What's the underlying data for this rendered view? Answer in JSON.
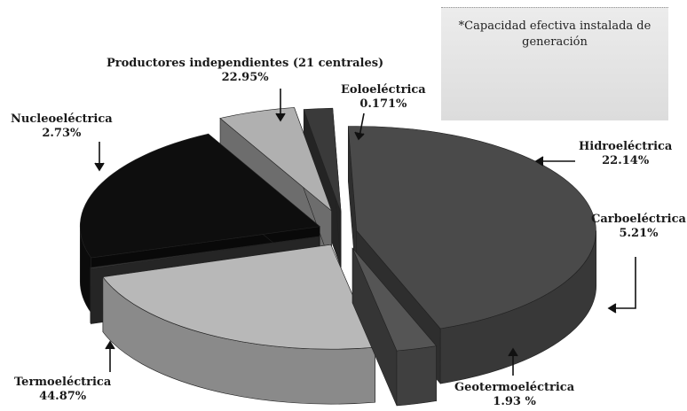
{
  "note": "*Capacidad efectiva instalada de generación",
  "chart_data": {
    "type": "pie",
    "title": "",
    "slices": [
      {
        "label": "Termoeléctrica",
        "value_label": "44.87%",
        "value": 44.87,
        "color": "#4a4a4a"
      },
      {
        "label": "Nucleoeléctrica",
        "value_label": "2.73%",
        "value": 2.73,
        "color": "#555555"
      },
      {
        "label": "Productores independientes (21 centrales)",
        "value_label": "22.95%",
        "value": 22.95,
        "color": "#b8b8b8"
      },
      {
        "label": "Eoloeléctrica",
        "value_label": "0.171%",
        "value": 0.171,
        "color": "#3c3c3c"
      },
      {
        "label": "Hidroeléctrica",
        "value_label": "22.14%",
        "value": 22.14,
        "color": "#0e0e0e"
      },
      {
        "label": "Carboeléctrica",
        "value_label": "5.21%",
        "value": 5.21,
        "color": "#b0b0b0"
      },
      {
        "label": "Geotermoeléctrica",
        "value_label": "1.93 %",
        "value": 1.93,
        "color": "#3a3a3a"
      }
    ],
    "legend": "none"
  }
}
